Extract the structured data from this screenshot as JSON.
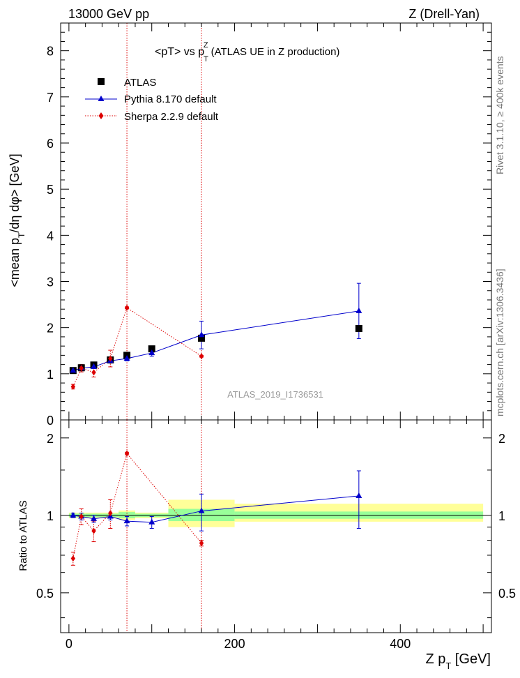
{
  "header": {
    "left": "13000 GeV pp",
    "right": "Z (Drell-Yan)"
  },
  "side_labels": {
    "rivet": "Rivet 3.1.10, ≥ 400k events",
    "mcplots": "mcplots.cern.ch [arXiv:1306.3436]"
  },
  "watermark": "ATLAS_2019_I1736531",
  "colors": {
    "atlas": "#000000",
    "pythia": "#0000cc",
    "sherpa": "#dd0000",
    "band_inner": "#99ff99",
    "band_outer": "#ffff99",
    "vline": "#dd0000"
  },
  "chart_data": [
    {
      "type": "scatter",
      "panel": "main",
      "title": "<pT> vs pT^Z (ATLAS UE in Z production)",
      "title_parts": {
        "pre": "<pT> vs p",
        "sub": "T",
        "sup": "Z",
        "post": "(ATLAS UE in Z production)"
      },
      "xlabel": "Z pT [GeV]",
      "ylabel": "<mean pT/dη dφ> [GeV]",
      "ylabel_parts": {
        "a": "<mean p",
        "sub": "T",
        "b": "/dη dφ> [GeV]"
      },
      "xlim": [
        -10,
        510
      ],
      "ylim": [
        0,
        8.6
      ],
      "yticks": [
        0,
        1,
        2,
        3,
        4,
        5,
        6,
        7,
        8
      ],
      "legend_position": "top-left",
      "vlines_x": [
        70,
        160
      ],
      "series": [
        {
          "name": "ATLAS",
          "style": "square-marker",
          "points": [
            {
              "x": 5,
              "y": 1.07
            },
            {
              "x": 15,
              "y": 1.13
            },
            {
              "x": 30,
              "y": 1.19
            },
            {
              "x": 50,
              "y": 1.3
            },
            {
              "x": 70,
              "y": 1.4
            },
            {
              "x": 100,
              "y": 1.54
            },
            {
              "x": 160,
              "y": 1.77
            },
            {
              "x": 350,
              "y": 1.98
            }
          ]
        },
        {
          "name": "Pythia 8.170 default",
          "style": "triangle-line",
          "points": [
            {
              "x": 5,
              "y": 1.07,
              "err": 0.02
            },
            {
              "x": 15,
              "y": 1.12,
              "err": 0.03
            },
            {
              "x": 30,
              "y": 1.15,
              "err": 0.04
            },
            {
              "x": 50,
              "y": 1.28,
              "err": 0.05
            },
            {
              "x": 70,
              "y": 1.33,
              "err": 0.05
            },
            {
              "x": 100,
              "y": 1.45,
              "err": 0.07
            },
            {
              "x": 160,
              "y": 1.84,
              "err": 0.3
            },
            {
              "x": 350,
              "y": 2.36,
              "err": 0.6
            }
          ]
        },
        {
          "name": "Sherpa 2.2.9 default",
          "style": "diamond-dotted",
          "points": [
            {
              "x": 5,
              "y": 0.72,
              "err": 0.05
            },
            {
              "x": 15,
              "y": 1.12,
              "err": 0.08
            },
            {
              "x": 30,
              "y": 1.03,
              "err": 0.1
            },
            {
              "x": 50,
              "y": 1.33,
              "err": 0.18
            },
            {
              "x": 70,
              "y": 2.43,
              "err": 0.02
            },
            {
              "x": 160,
              "y": 1.38,
              "err": 0.02
            }
          ]
        }
      ]
    },
    {
      "type": "scatter",
      "panel": "ratio",
      "ylabel": "Ratio to ATLAS",
      "xlabel": "Z pT [GeV]",
      "xlim": [
        -10,
        510
      ],
      "ylim": [
        0.35,
        2.35
      ],
      "yticks": [
        0.5,
        1,
        2
      ],
      "ytick_labels": [
        "0.5",
        "1",
        "2"
      ],
      "xticks": [
        0,
        200,
        400
      ],
      "xtick_labels": [
        "0",
        "200",
        "400"
      ],
      "bands": [
        {
          "x0": 0,
          "x1": 10,
          "inner": [
            0.985,
            1.015
          ],
          "outer": [
            0.975,
            1.025
          ]
        },
        {
          "x0": 10,
          "x1": 20,
          "inner": [
            0.985,
            1.015
          ],
          "outer": [
            0.975,
            1.025
          ]
        },
        {
          "x0": 20,
          "x1": 40,
          "inner": [
            0.985,
            1.015
          ],
          "outer": [
            0.975,
            1.025
          ]
        },
        {
          "x0": 40,
          "x1": 60,
          "inner": [
            0.985,
            1.015
          ],
          "outer": [
            0.975,
            1.025
          ]
        },
        {
          "x0": 60,
          "x1": 80,
          "inner": [
            0.975,
            1.03
          ],
          "outer": [
            0.96,
            1.045
          ]
        },
        {
          "x0": 80,
          "x1": 120,
          "inner": [
            0.985,
            1.015
          ],
          "outer": [
            0.975,
            1.025
          ]
        },
        {
          "x0": 120,
          "x1": 200,
          "inner": [
            0.95,
            1.06
          ],
          "outer": [
            0.9,
            1.15
          ]
        },
        {
          "x0": 200,
          "x1": 500,
          "inner": [
            0.97,
            1.035
          ],
          "outer": [
            0.945,
            1.11
          ]
        }
      ],
      "series": [
        {
          "name": "Pythia 8.170 default",
          "style": "triangle-line",
          "points": [
            {
              "x": 5,
              "y": 1.0,
              "err": 0.02
            },
            {
              "x": 15,
              "y": 0.99,
              "err": 0.03
            },
            {
              "x": 30,
              "y": 0.97,
              "err": 0.03
            },
            {
              "x": 50,
              "y": 0.99,
              "err": 0.03
            },
            {
              "x": 70,
              "y": 0.95,
              "err": 0.04
            },
            {
              "x": 100,
              "y": 0.94,
              "err": 0.05
            },
            {
              "x": 160,
              "y": 1.04,
              "err": 0.17
            },
            {
              "x": 350,
              "y": 1.19,
              "err": 0.3
            }
          ]
        },
        {
          "name": "Sherpa 2.2.9 default",
          "style": "diamond-dotted",
          "points": [
            {
              "x": 5,
              "y": 0.68,
              "err": 0.04
            },
            {
              "x": 15,
              "y": 0.99,
              "err": 0.07
            },
            {
              "x": 30,
              "y": 0.87,
              "err": 0.08
            },
            {
              "x": 50,
              "y": 1.02,
              "err": 0.13
            },
            {
              "x": 70,
              "y": 1.74,
              "err": 0.02
            },
            {
              "x": 160,
              "y": 0.78,
              "err": 0.02
            }
          ]
        }
      ]
    }
  ]
}
